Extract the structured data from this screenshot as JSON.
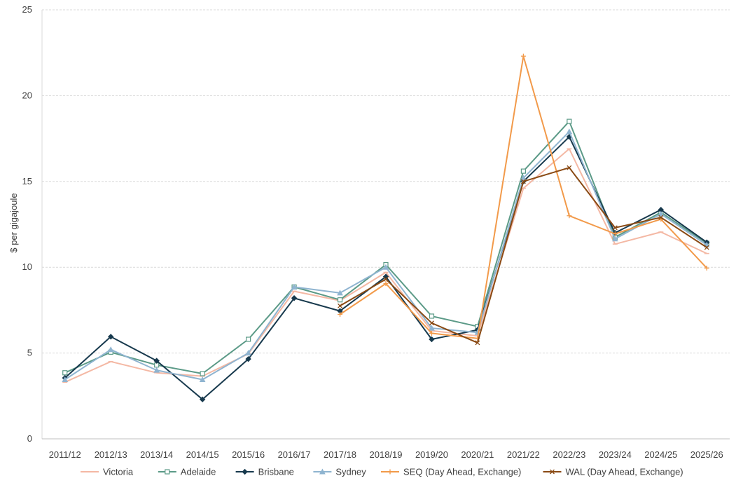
{
  "chart_data": {
    "type": "line",
    "title": "",
    "xlabel": "",
    "ylabel": "$ per gigajoule",
    "ylim": [
      0,
      25
    ],
    "yticks": [
      0,
      5,
      10,
      15,
      20,
      25
    ],
    "grid": "horizontal dashed",
    "legend_position": "bottom",
    "categories": [
      "2011/12",
      "2012/13",
      "2013/14",
      "2014/15",
      "2015/16",
      "2016/17",
      "2017/18",
      "2018/19",
      "2019/20",
      "2020/21",
      "2021/22",
      "2022/23",
      "2023/24",
      "2024/25",
      "2025/26"
    ],
    "series": [
      {
        "name": "Victoria",
        "color": "#f4b8a4",
        "marker": "dash",
        "values": [
          3.3,
          4.5,
          3.85,
          3.65,
          4.95,
          8.6,
          8.05,
          9.7,
          6.3,
          6.0,
          14.6,
          16.9,
          11.35,
          12.05,
          10.8
        ]
      },
      {
        "name": "Adelaide",
        "color": "#5b9a87",
        "marker": "square",
        "values": [
          3.85,
          5.05,
          4.3,
          3.8,
          5.8,
          8.85,
          8.1,
          10.15,
          7.15,
          6.55,
          15.6,
          18.5,
          11.75,
          13.2,
          11.4
        ]
      },
      {
        "name": "Brisbane",
        "color": "#17394d",
        "marker": "diamond",
        "values": [
          3.55,
          5.95,
          4.55,
          2.3,
          4.65,
          8.2,
          7.45,
          9.45,
          5.8,
          6.35,
          15.0,
          17.6,
          12.0,
          13.35,
          11.45
        ]
      },
      {
        "name": "Sydney",
        "color": "#8fb4d0",
        "marker": "triangle",
        "values": [
          3.45,
          5.2,
          4.0,
          3.45,
          5.0,
          8.85,
          8.5,
          10.0,
          6.45,
          6.2,
          15.2,
          17.9,
          11.65,
          13.1,
          11.3
        ]
      },
      {
        "name": "SEQ (Day Ahead, Exchange)",
        "color": "#f29a4a",
        "marker": "plus",
        "values": [
          null,
          null,
          null,
          null,
          null,
          null,
          7.25,
          9.05,
          6.15,
          5.85,
          22.3,
          13.0,
          11.95,
          12.8,
          9.95
        ]
      },
      {
        "name": "WAL (Day Ahead, Exchange)",
        "color": "#8a4a14",
        "marker": "x",
        "values": [
          null,
          null,
          null,
          null,
          null,
          null,
          7.75,
          9.3,
          6.75,
          5.6,
          15.0,
          15.8,
          12.3,
          12.9,
          11.15
        ]
      }
    ]
  }
}
